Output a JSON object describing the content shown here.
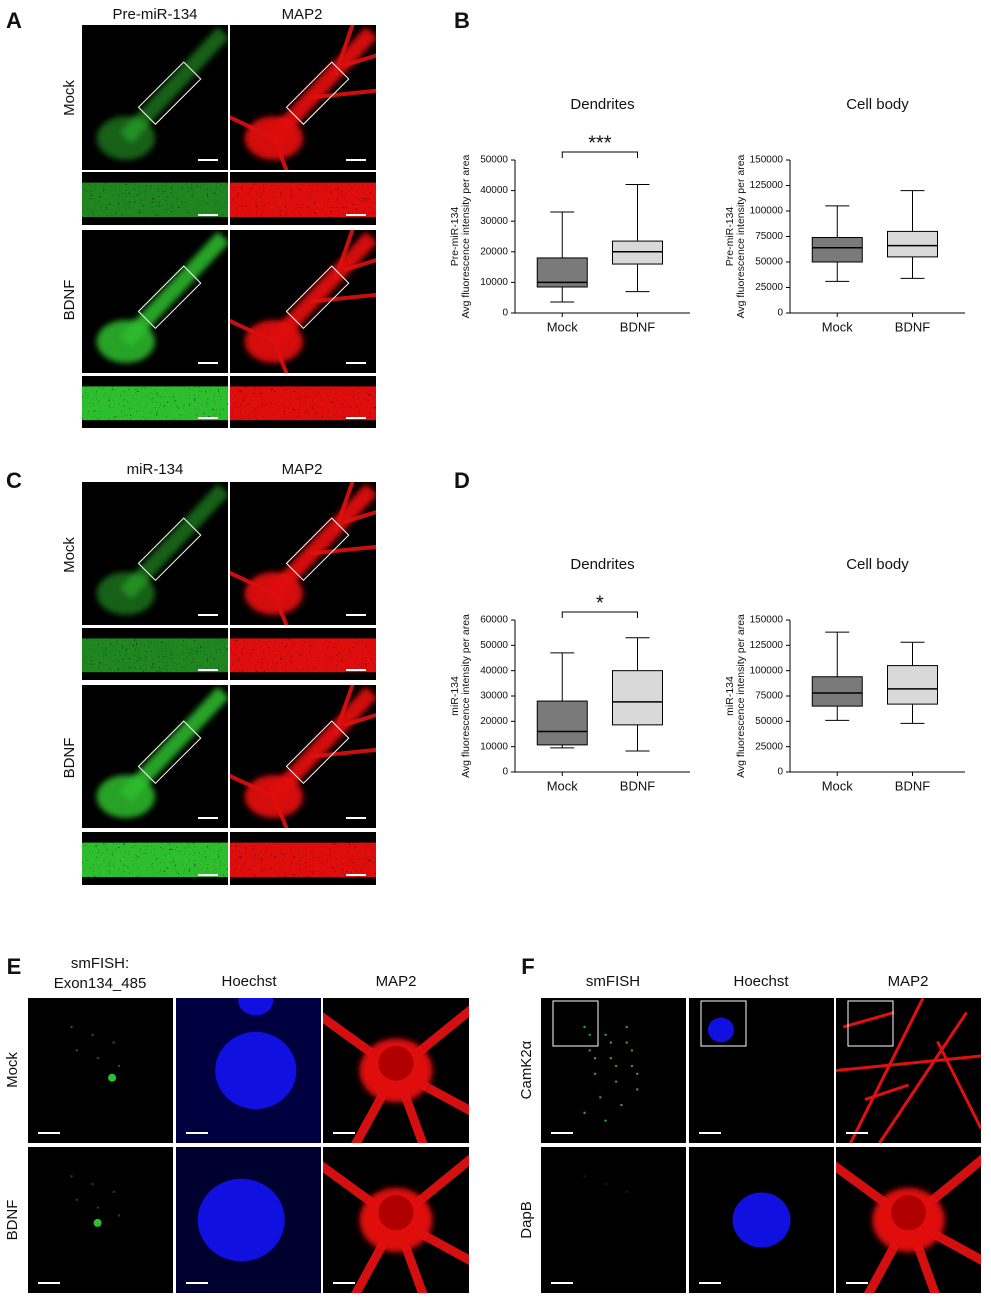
{
  "panels": [
    {
      "letter": "A",
      "columns": [
        "Pre-miR-134",
        "MAP2"
      ],
      "rows": [
        "Mock",
        "BDNF"
      ]
    },
    {
      "letter": "C",
      "columns": [
        "miR-134",
        "MAP2"
      ],
      "rows": [
        "Mock",
        "BDNF"
      ]
    },
    {
      "letter": "E",
      "columns": [
        [
          "smFISH:",
          "Exon134_485"
        ],
        "Hoechst",
        "MAP2"
      ],
      "rows": [
        "Mock",
        "BDNF"
      ]
    },
    {
      "letter": "F",
      "columns": [
        "smFISH",
        "Hoechst",
        "MAP2"
      ],
      "rows": [
        "CamK2α",
        "DapB"
      ]
    }
  ],
  "chart_letters": [
    "B",
    "D"
  ],
  "chart_data": [
    {
      "type": "box",
      "title": "Dendrites",
      "ylabel": [
        "Pre-miR-134",
        "Avg fluorescence intensity per area"
      ],
      "categories": [
        "Mock",
        "BDNF"
      ],
      "colors": [
        "#7a7a7a",
        "#d9d9d9"
      ],
      "boxes": [
        {
          "min": 3600,
          "q1": 8500,
          "median": 10000,
          "q3": 18000,
          "max": 33000
        },
        {
          "min": 7000,
          "q1": 16000,
          "median": 20000,
          "q3": 23500,
          "max": 42000
        }
      ],
      "ylim": [
        0,
        50000
      ],
      "yticks": [
        0,
        10000,
        20000,
        30000,
        40000,
        50000
      ],
      "annotation": "***"
    },
    {
      "type": "box",
      "title": "Cell body",
      "ylabel": [
        "Pre-miR-134",
        "Avg fluorescence intensity per area"
      ],
      "categories": [
        "Mock",
        "BDNF"
      ],
      "colors": [
        "#7a7a7a",
        "#d9d9d9"
      ],
      "boxes": [
        {
          "min": 31000,
          "q1": 50000,
          "median": 64000,
          "q3": 74000,
          "max": 105000
        },
        {
          "min": 34000,
          "q1": 55000,
          "median": 66000,
          "q3": 80000,
          "max": 120000
        }
      ],
      "ylim": [
        0,
        150000
      ],
      "yticks": [
        0,
        25000,
        50000,
        75000,
        100000,
        125000,
        150000
      ]
    },
    {
      "type": "box",
      "title": "Dendrites",
      "ylabel": [
        "miR-134",
        "Avg fluorescence intensity per area"
      ],
      "categories": [
        "Mock",
        "BDNF"
      ],
      "colors": [
        "#7a7a7a",
        "#d9d9d9"
      ],
      "boxes": [
        {
          "min": 9500,
          "q1": 10700,
          "median": 16000,
          "q3": 28000,
          "max": 47000
        },
        {
          "min": 8300,
          "q1": 18600,
          "median": 27700,
          "q3": 40000,
          "max": 53000
        }
      ],
      "ylim": [
        0,
        60000
      ],
      "yticks": [
        0,
        10000,
        20000,
        30000,
        40000,
        50000,
        60000
      ],
      "annotation": "*"
    },
    {
      "type": "box",
      "title": "Cell body",
      "ylabel": [
        "miR-134",
        "Avg fluorescence intensity per area"
      ],
      "categories": [
        "Mock",
        "BDNF"
      ],
      "colors": [
        "#7a7a7a",
        "#d9d9d9"
      ],
      "boxes": [
        {
          "min": 51000,
          "q1": 65000,
          "median": 78000,
          "q3": 94000,
          "max": 138000
        },
        {
          "min": 48000,
          "q1": 67000,
          "median": 82000,
          "q3": 105000,
          "max": 128000
        }
      ],
      "ylim": [
        0,
        150000
      ],
      "yticks": [
        0,
        25000,
        50000,
        75000,
        100000,
        125000,
        150000
      ]
    }
  ]
}
